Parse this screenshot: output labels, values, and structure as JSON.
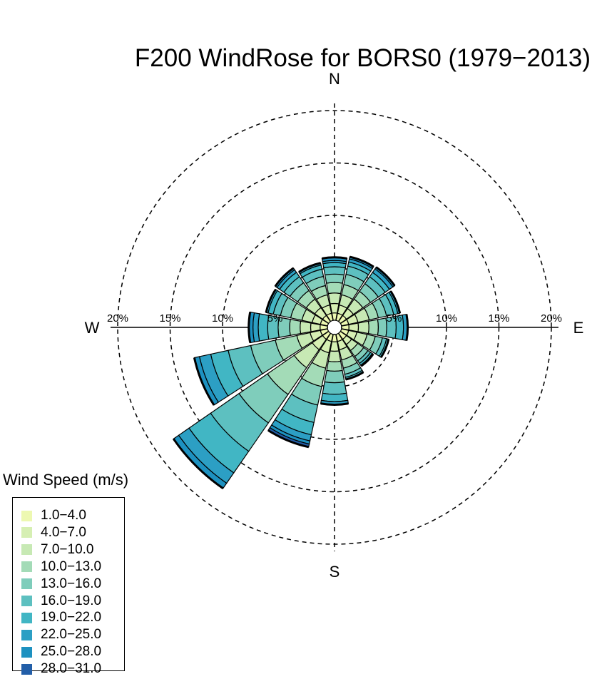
{
  "chart_data": {
    "type": "windrose",
    "title": "F200 WindRose for BORS0 (1979−2013)",
    "directions": [
      "N",
      "NNE",
      "NE",
      "ENE",
      "E",
      "ESE",
      "SE",
      "SSE",
      "S",
      "SSW",
      "SW",
      "WSW",
      "W",
      "WNW",
      "NW",
      "NNW"
    ],
    "compass_labels": {
      "north": "N",
      "east": "E",
      "south": "S",
      "west": "W"
    },
    "ring_values": [
      5,
      10,
      15,
      20
    ],
    "ring_labels": [
      "5%",
      "10%",
      "15%",
      "20%"
    ],
    "legend": {
      "title": "Wind Speed (m/s)",
      "bins": [
        "1.0−4.0",
        "4.0−7.0",
        "7.0−10.0",
        "10.0−13.0",
        "13.0−16.0",
        "16.0−19.0",
        "19.0−22.0",
        "22.0−25.0",
        "25.0−28.0",
        "28.0−31.0"
      ],
      "colors": [
        "#edf8b1",
        "#d6efb3",
        "#c7e9b4",
        "#a3dbb7",
        "#7fcdbb",
        "#5dc0c0",
        "#41b6c4",
        "#2c9fc4",
        "#1d91c0",
        "#225ea8"
      ]
    },
    "frequency_percent_cumulative": {
      "N": [
        0.7,
        1.6,
        2.6,
        3.6,
        4.4,
        5.1,
        5.5,
        5.7,
        6.0
      ],
      "NNE": [
        0.7,
        1.5,
        2.5,
        3.5,
        4.5,
        5.3,
        5.7,
        6.0,
        6.2
      ],
      "NE": [
        0.7,
        1.5,
        2.6,
        3.5,
        4.4,
        5.2,
        5.7,
        6.1,
        6.3
      ],
      "ENE": [
        0.7,
        1.6,
        2.7,
        3.6,
        4.4,
        5.1,
        5.5,
        5.7
      ],
      "E": [
        0.7,
        1.6,
        2.6,
        3.5,
        4.3,
        5.2,
        5.9,
        6.3
      ],
      "ESE": [
        0.7,
        1.5,
        2.5,
        3.3,
        4.0,
        4.4,
        4.6
      ],
      "SE": [
        0.7,
        1.3,
        2.0,
        2.7,
        3.2,
        3.5,
        3.7,
        3.8
      ],
      "SSE": [
        0.7,
        1.5,
        2.5,
        3.3,
        3.9,
        4.2,
        4.4
      ],
      "S": [
        0.7,
        1.6,
        2.6,
        3.5,
        4.6,
        5.7,
        6.4,
        6.7
      ],
      "SSW": [
        0.7,
        1.8,
        3.3,
        5.1,
        6.9,
        8.6,
        9.8,
        10.4,
        10.7,
        11.0
      ],
      "SW": [
        0.7,
        1.9,
        4.0,
        7.1,
        10.4,
        13.7,
        16.2,
        17.4,
        18.0
      ],
      "WSW": [
        0.7,
        1.7,
        3.0,
        5.1,
        7.5,
        9.7,
        11.4,
        12.5,
        13.0
      ],
      "W": [
        0.7,
        1.6,
        2.6,
        3.6,
        4.7,
        5.7,
        6.6,
        7.1,
        7.5
      ],
      "WNW": [
        0.7,
        1.5,
        2.5,
        3.6,
        4.6,
        5.3,
        5.8,
        6.0
      ],
      "NW": [
        0.7,
        1.6,
        2.6,
        3.6,
        4.5,
        5.2,
        5.7,
        6.0,
        6.2
      ],
      "NNW": [
        0.7,
        1.5,
        2.5,
        3.4,
        4.3,
        5.0,
        5.4,
        5.6
      ]
    },
    "grid": "dashed rings and dashed N–S axis; solid W–E axis",
    "legend_placement": "bottom-left"
  }
}
